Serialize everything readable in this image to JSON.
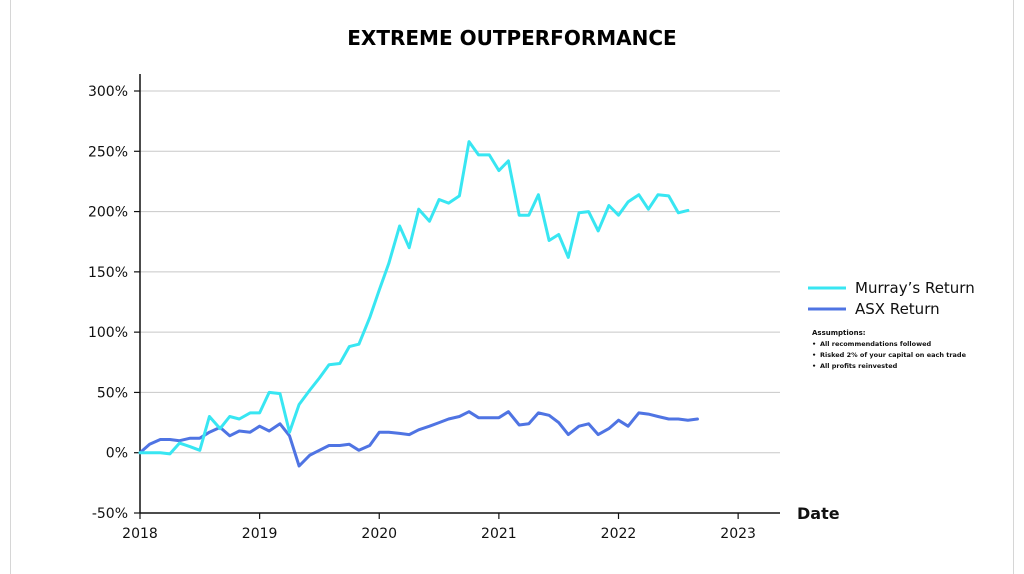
{
  "chart_data": {
    "type": "line",
    "title": "EXTREME OUTPERFORMANCE",
    "xlabel": "Date",
    "ylabel": "",
    "xlim": [
      2018.0,
      2023.35
    ],
    "ylim": [
      -50,
      300
    ],
    "y_ticks": [
      {
        "value": 300,
        "label": "300%"
      },
      {
        "value": 250,
        "label": "250%"
      },
      {
        "value": 200,
        "label": "200%"
      },
      {
        "value": 150,
        "label": "150%"
      },
      {
        "value": 100,
        "label": "100%"
      },
      {
        "value": 50,
        "label": "50%"
      },
      {
        "value": 0,
        "label": "0%"
      },
      {
        "value": -50,
        "label": "-50%"
      }
    ],
    "x_ticks": [
      {
        "value": 2018,
        "label": "2018"
      },
      {
        "value": 2019,
        "label": "2019"
      },
      {
        "value": 2020,
        "label": "2020"
      },
      {
        "value": 2021,
        "label": "2021"
      },
      {
        "value": 2022,
        "label": "2022"
      },
      {
        "value": 2023,
        "label": "2023"
      }
    ],
    "grid": "horizontal",
    "legend_position": "right",
    "series": [
      {
        "name": "Murray’s Return",
        "color": "#38e6f2",
        "points": [
          [
            2018.0,
            0
          ],
          [
            2018.08,
            0
          ],
          [
            2018.17,
            0
          ],
          [
            2018.25,
            -1
          ],
          [
            2018.33,
            8
          ],
          [
            2018.42,
            5
          ],
          [
            2018.5,
            2
          ],
          [
            2018.58,
            30
          ],
          [
            2018.67,
            20
          ],
          [
            2018.75,
            30
          ],
          [
            2018.83,
            28
          ],
          [
            2018.92,
            33
          ],
          [
            2019.0,
            33
          ],
          [
            2019.08,
            50
          ],
          [
            2019.17,
            49
          ],
          [
            2019.25,
            17
          ],
          [
            2019.33,
            40
          ],
          [
            2019.42,
            52
          ],
          [
            2019.5,
            62
          ],
          [
            2019.58,
            73
          ],
          [
            2019.67,
            74
          ],
          [
            2019.75,
            88
          ],
          [
            2019.83,
            90
          ],
          [
            2019.92,
            112
          ],
          [
            2020.0,
            135
          ],
          [
            2020.08,
            157
          ],
          [
            2020.17,
            188
          ],
          [
            2020.25,
            170
          ],
          [
            2020.33,
            202
          ],
          [
            2020.42,
            192
          ],
          [
            2020.5,
            210
          ],
          [
            2020.58,
            207
          ],
          [
            2020.67,
            213
          ],
          [
            2020.75,
            258
          ],
          [
            2020.83,
            247
          ],
          [
            2020.92,
            247
          ],
          [
            2021.0,
            234
          ],
          [
            2021.08,
            242
          ],
          [
            2021.17,
            197
          ],
          [
            2021.25,
            197
          ],
          [
            2021.33,
            214
          ],
          [
            2021.42,
            176
          ],
          [
            2021.5,
            181
          ],
          [
            2021.58,
            162
          ],
          [
            2021.67,
            199
          ],
          [
            2021.75,
            200
          ],
          [
            2021.83,
            184
          ],
          [
            2021.92,
            205
          ],
          [
            2022.0,
            197
          ],
          [
            2022.08,
            208
          ],
          [
            2022.17,
            214
          ],
          [
            2022.25,
            202
          ],
          [
            2022.33,
            214
          ],
          [
            2022.42,
            213
          ],
          [
            2022.5,
            199
          ],
          [
            2022.58,
            201
          ]
        ]
      },
      {
        "name": "ASX Return",
        "color": "#4f74e3",
        "points": [
          [
            2018.0,
            0
          ],
          [
            2018.08,
            7
          ],
          [
            2018.17,
            11
          ],
          [
            2018.25,
            11
          ],
          [
            2018.33,
            10
          ],
          [
            2018.42,
            12
          ],
          [
            2018.5,
            12
          ],
          [
            2018.58,
            17
          ],
          [
            2018.67,
            21
          ],
          [
            2018.75,
            14
          ],
          [
            2018.83,
            18
          ],
          [
            2018.92,
            17
          ],
          [
            2019.0,
            22
          ],
          [
            2019.08,
            18
          ],
          [
            2019.17,
            24
          ],
          [
            2019.25,
            14
          ],
          [
            2019.33,
            -11
          ],
          [
            2019.42,
            -2
          ],
          [
            2019.5,
            2
          ],
          [
            2019.58,
            6
          ],
          [
            2019.67,
            6
          ],
          [
            2019.75,
            7
          ],
          [
            2019.83,
            2
          ],
          [
            2019.92,
            6
          ],
          [
            2020.0,
            17
          ],
          [
            2020.08,
            17
          ],
          [
            2020.17,
            16
          ],
          [
            2020.25,
            15
          ],
          [
            2020.33,
            19
          ],
          [
            2020.42,
            22
          ],
          [
            2020.5,
            25
          ],
          [
            2020.58,
            28
          ],
          [
            2020.67,
            30
          ],
          [
            2020.75,
            34
          ],
          [
            2020.83,
            29
          ],
          [
            2020.92,
            29
          ],
          [
            2021.0,
            29
          ],
          [
            2021.08,
            34
          ],
          [
            2021.17,
            23
          ],
          [
            2021.25,
            24
          ],
          [
            2021.33,
            33
          ],
          [
            2021.42,
            31
          ],
          [
            2021.5,
            25
          ],
          [
            2021.58,
            15
          ],
          [
            2021.67,
            22
          ],
          [
            2021.75,
            24
          ],
          [
            2021.83,
            15
          ],
          [
            2021.92,
            20
          ],
          [
            2022.0,
            27
          ],
          [
            2022.08,
            22
          ],
          [
            2022.17,
            33
          ],
          [
            2022.25,
            32
          ],
          [
            2022.33,
            30
          ],
          [
            2022.42,
            28
          ],
          [
            2022.5,
            28
          ],
          [
            2022.58,
            27
          ],
          [
            2022.66,
            28
          ]
        ]
      }
    ],
    "assumptions": {
      "heading": "Assumptions:",
      "items": [
        "All recommendations followed",
        "Risked 2% of your capital on each trade",
        "All profits reinvested"
      ]
    }
  }
}
